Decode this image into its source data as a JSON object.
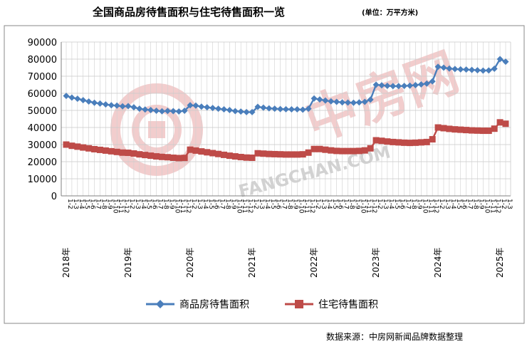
{
  "chart_data": {
    "type": "line",
    "title": "全国商品房待售面积与住宅待售面积一览",
    "unit": "(单位：万平方米)",
    "ylim": [
      0,
      90000
    ],
    "yticks": [
      "0",
      "10000",
      "20000",
      "30000",
      "40000",
      "50000",
      "60000",
      "70000",
      "80000",
      "90000"
    ],
    "grid": true,
    "legend_position": "bottom",
    "year_labels": [
      "2018年",
      "2019年",
      "2020年",
      "2021年",
      "2022年",
      "2023年",
      "2024年",
      "2025年"
    ],
    "month_labels": [
      "1-2",
      "1-3",
      "1-4",
      "1-5",
      "1-6",
      "1-7",
      "1-8",
      "1-9",
      "1-10",
      "1-11",
      "1-12"
    ],
    "x": [
      "2018-1-2",
      "2018-1-3",
      "2018-1-4",
      "2018-1-5",
      "2018-1-6",
      "2018-1-7",
      "2018-1-8",
      "2018-1-9",
      "2018-1-10",
      "2018-1-11",
      "2018-1-12",
      "2019-1-2",
      "2019-1-3",
      "2019-1-4",
      "2019-1-5",
      "2019-1-6",
      "2019-1-7",
      "2019-1-8",
      "2019-1-9",
      "2019-1-10",
      "2019-1-11",
      "2019-1-12",
      "2020-1-2",
      "2020-1-3",
      "2020-1-4",
      "2020-1-5",
      "2020-1-6",
      "2020-1-7",
      "2020-1-8",
      "2020-1-9",
      "2020-1-10",
      "2020-1-11",
      "2020-1-12",
      "2021-1-2",
      "2021-1-3",
      "2021-1-4",
      "2021-1-5",
      "2021-1-6",
      "2021-1-7",
      "2021-1-8",
      "2021-1-9",
      "2021-1-10",
      "2021-1-11",
      "2021-1-12",
      "2022-1-2",
      "2022-1-3",
      "2022-1-4",
      "2022-1-5",
      "2022-1-6",
      "2022-1-7",
      "2022-1-8",
      "2022-1-9",
      "2022-1-10",
      "2022-1-11",
      "2022-1-12",
      "2023-1-2",
      "2023-1-3",
      "2023-1-4",
      "2023-1-5",
      "2023-1-6",
      "2023-1-7",
      "2023-1-8",
      "2023-1-9",
      "2023-1-10",
      "2023-1-11",
      "2023-1-12",
      "2024-1-2",
      "2024-1-3",
      "2024-1-4",
      "2024-1-5",
      "2024-1-6",
      "2024-1-7",
      "2024-1-8",
      "2024-1-9",
      "2024-1-10",
      "2024-1-11",
      "2024-1-12",
      "2025-1-2",
      "2025-1-3"
    ],
    "series": [
      {
        "name": "商品房待售面积",
        "color": "#4a7ebb",
        "marker": "diamond",
        "values": [
          58500,
          57500,
          56800,
          56000,
          55200,
          54500,
          54000,
          53500,
          53000,
          52800,
          52400,
          52500,
          51800,
          51000,
          50500,
          50200,
          49800,
          49500,
          49700,
          49600,
          49400,
          49800,
          53000,
          52800,
          52200,
          51800,
          51400,
          51000,
          50600,
          50200,
          49600,
          49300,
          49000,
          49000,
          52100,
          51600,
          51200,
          51000,
          50800,
          50700,
          50600,
          50600,
          50400,
          51000,
          57000,
          56400,
          55800,
          55300,
          55000,
          54700,
          54600,
          54500,
          54700,
          55000,
          56300,
          65000,
          64700,
          64400,
          64200,
          64200,
          64300,
          64500,
          64800,
          65200,
          65700,
          67000,
          75500,
          75000,
          74500,
          74200,
          74000,
          73900,
          73700,
          73500,
          73300,
          73400,
          74400,
          80000,
          78500
        ]
      },
      {
        "name": "住宅待售面积",
        "color": "#be4b48",
        "marker": "square",
        "values": [
          30000,
          29300,
          28800,
          28300,
          27800,
          27300,
          26900,
          26500,
          26100,
          25700,
          25300,
          25200,
          24800,
          24300,
          23900,
          23500,
          23100,
          22800,
          22600,
          22300,
          22100,
          22200,
          27000,
          26500,
          26000,
          25500,
          25000,
          24500,
          24000,
          23500,
          23100,
          22700,
          22400,
          22300,
          24900,
          24700,
          24500,
          24400,
          24300,
          24200,
          24200,
          24200,
          24300,
          25300,
          27400,
          27400,
          27000,
          26600,
          26300,
          26200,
          26200,
          26200,
          26300,
          26600,
          27800,
          32500,
          32200,
          31800,
          31500,
          31300,
          31100,
          31000,
          31100,
          31300,
          31500,
          33100,
          40000,
          39600,
          39200,
          38900,
          38700,
          38500,
          38300,
          38200,
          38100,
          38100,
          39300,
          43000,
          42200
        ]
      }
    ]
  },
  "watermark": {
    "text_cn": "中房网",
    "text_en": "FANGCHAN.COM"
  },
  "source": "数据来源：中房网新闻品牌数据整理",
  "colors": {
    "watermark": "#e8a6a6"
  }
}
